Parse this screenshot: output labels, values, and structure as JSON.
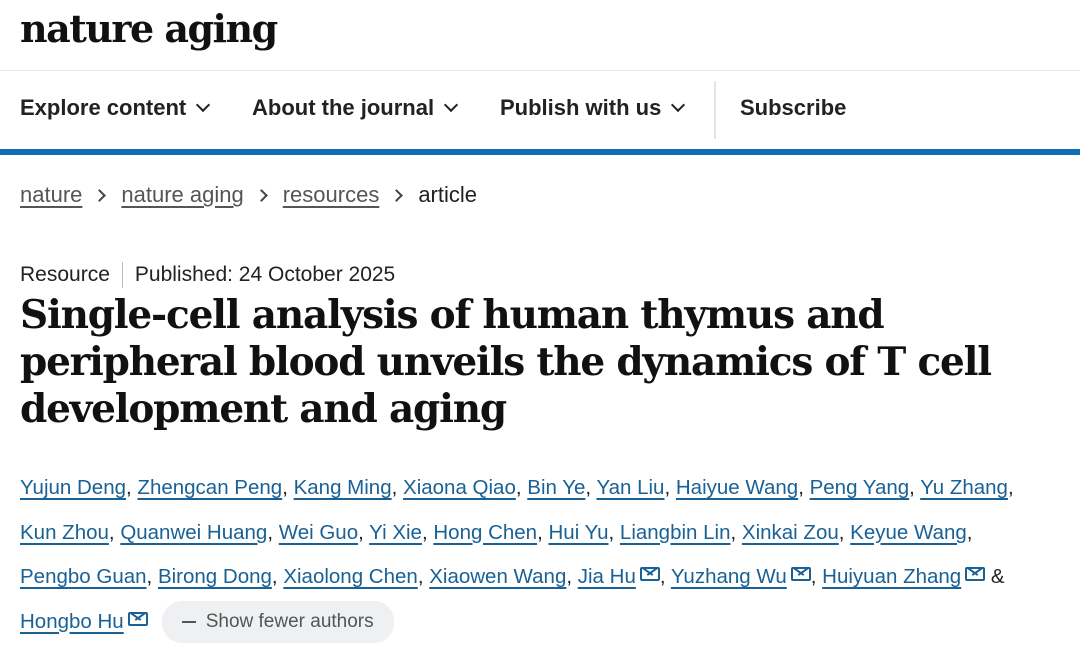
{
  "header": {
    "logo": "nature aging"
  },
  "nav": {
    "items": [
      "Explore content",
      "About the journal",
      "Publish with us"
    ],
    "subscribe": "Subscribe"
  },
  "breadcrumb": {
    "links": [
      "nature",
      "nature aging",
      "resources"
    ],
    "current": "article"
  },
  "article": {
    "type": "Resource",
    "published": "Published: 24 October 2025",
    "title": "Single-cell analysis of human thymus and peripheral blood unveils the dynamics of T cell development and aging"
  },
  "authors": [
    {
      "name": "Yujun Deng"
    },
    {
      "name": "Zhengcan Peng"
    },
    {
      "name": "Kang Ming"
    },
    {
      "name": "Xiaona Qiao"
    },
    {
      "name": "Bin Ye"
    },
    {
      "name": "Yan Liu"
    },
    {
      "name": "Haiyue Wang"
    },
    {
      "name": "Peng Yang"
    },
    {
      "name": "Yu Zhang"
    },
    {
      "name": "Kun Zhou"
    },
    {
      "name": "Quanwei Huang"
    },
    {
      "name": "Wei Guo"
    },
    {
      "name": "Yi Xie"
    },
    {
      "name": "Hong Chen"
    },
    {
      "name": "Hui Yu"
    },
    {
      "name": "Liangbin Lin"
    },
    {
      "name": "Xinkai Zou"
    },
    {
      "name": "Keyue Wang"
    },
    {
      "name": "Pengbo Guan"
    },
    {
      "name": "Birong Dong"
    },
    {
      "name": "Xiaolong Chen"
    },
    {
      "name": "Xiaowen Wang"
    },
    {
      "name": "Jia Hu",
      "email": true
    },
    {
      "name": "Yuzhang Wu",
      "email": true
    },
    {
      "name": "Huiyuan Zhang",
      "email": true
    },
    {
      "name": "Hongbo Hu",
      "email": true
    }
  ],
  "show_fewer": "Show fewer authors",
  "colors": {
    "accent": "#0f6eb6",
    "link": "#1a6196"
  }
}
